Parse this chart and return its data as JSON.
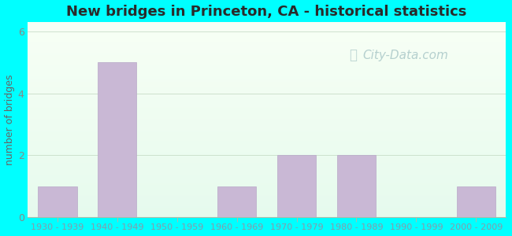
{
  "title": "New bridges in Princeton, CA - historical statistics",
  "ylabel": "number of bridges",
  "categories": [
    "1930 - 1939",
    "1940 - 1949",
    "1950 - 1959",
    "1960 - 1969",
    "1970 - 1979",
    "1980 - 1989",
    "1990 - 1999",
    "2000 - 2009"
  ],
  "values": [
    1,
    5,
    0,
    1,
    2,
    2,
    0,
    1
  ],
  "bar_color": "#c9b8d5",
  "bar_edgecolor": "#b8a8c8",
  "ylim": [
    0,
    6.3
  ],
  "yticks": [
    0,
    2,
    4,
    6
  ],
  "outer_bg": "#00ffff",
  "plot_bg_colors": [
    "#f0faf4",
    "#e8f8f0"
  ],
  "title_color": "#2a2a2a",
  "ylabel_color": "#666666",
  "tick_label_color": "#888888",
  "xtick_label_color": "#8899aa",
  "watermark_text": "City-Data.com",
  "watermark_color": "#aac8c8",
  "title_fontsize": 13,
  "ylabel_fontsize": 9,
  "tick_fontsize": 8,
  "watermark_fontsize": 11,
  "grid_color": "#c8dcc8",
  "bottom_spine_color": "#aabbaa"
}
